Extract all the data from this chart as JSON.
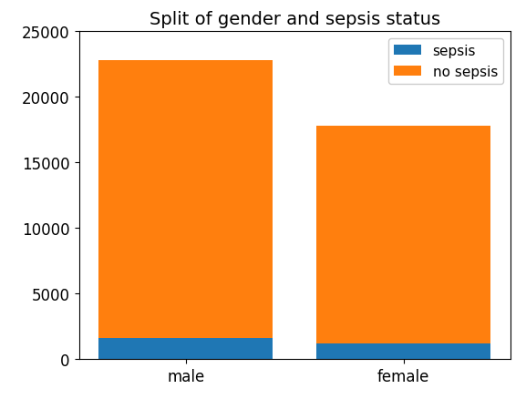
{
  "categories": [
    "male",
    "female"
  ],
  "sepsis_values": [
    1600,
    1200
  ],
  "no_sepsis_values": [
    21200,
    16600
  ],
  "sepsis_color": "#1f77b4",
  "no_sepsis_color": "#ff7f0e",
  "title": "Split of gender and sepsis status",
  "legend_labels": [
    "sepsis",
    "no sepsis"
  ],
  "ylim": [
    0,
    25000
  ],
  "title_fontsize": 14,
  "tick_fontsize": 12,
  "legend_fontsize": 11,
  "bar_width": 0.8
}
